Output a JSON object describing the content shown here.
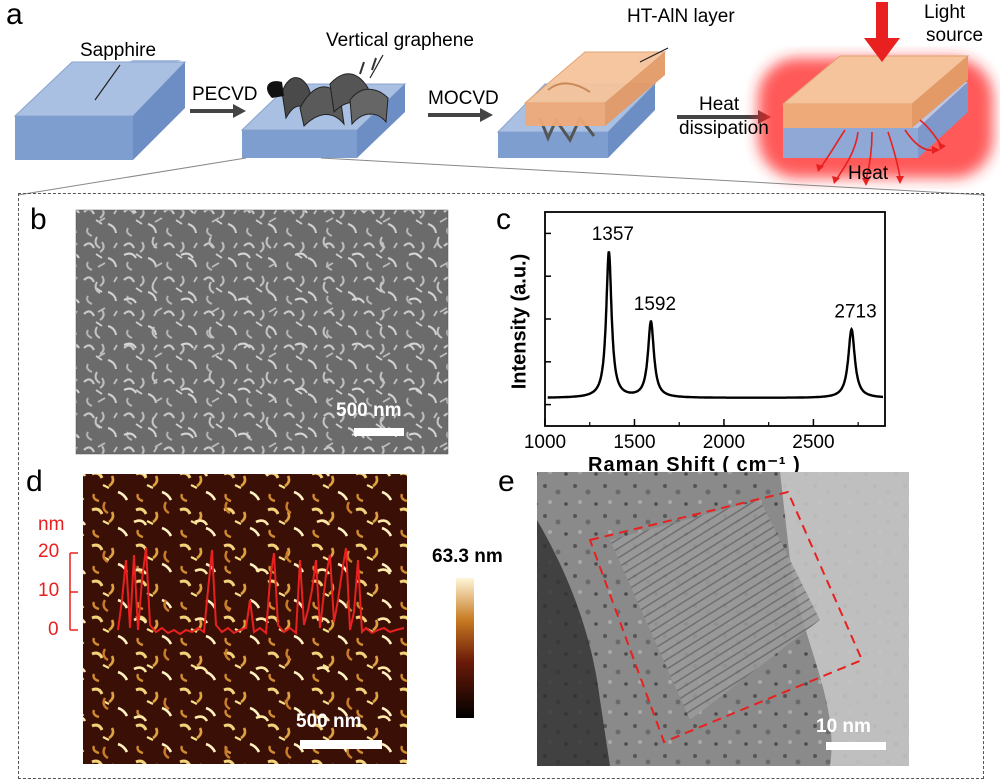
{
  "panels": {
    "a": "a",
    "b": "b",
    "c": "c",
    "d": "d",
    "e": "e"
  },
  "schematic": {
    "sapphire": "Sapphire",
    "vertical_graphene": "Vertical graphene",
    "ht_ain_layer": "HT-AlN layer",
    "light_source_line1": "Light",
    "light_source_line2": "source",
    "pecvd": "PECVD",
    "mocvd": "MOCVD",
    "heat_dissipation_line1": "Heat",
    "heat_dissipation_line2": "dissipation",
    "heat": "Heat"
  },
  "sem": {
    "scale_label": "500 nm"
  },
  "afm": {
    "height_max_label": "63.3 nm",
    "scale_label": "500 nm",
    "profile_unit": "nm",
    "profile_ticks": [
      "20",
      "10",
      "0"
    ]
  },
  "tem": {
    "scale_label": "10 nm"
  },
  "chart_data": {
    "type": "line",
    "xlabel": "Raman Shift ( cm⁻¹ )",
    "ylabel": "Intensity (a.u.)",
    "xlim": [
      1000,
      2900
    ],
    "x_ticks": [
      "1000",
      "1500",
      "2000",
      "2500"
    ],
    "x_tick_values": [
      1000,
      1500,
      2000,
      2500
    ],
    "peaks": [
      {
        "label": "1357",
        "x": 1357,
        "height": 1.0,
        "width": 18
      },
      {
        "label": "1592",
        "x": 1592,
        "height": 0.52,
        "width": 20
      },
      {
        "label": "2713",
        "x": 2713,
        "height": 0.47,
        "width": 22
      }
    ],
    "color": "#000000"
  }
}
